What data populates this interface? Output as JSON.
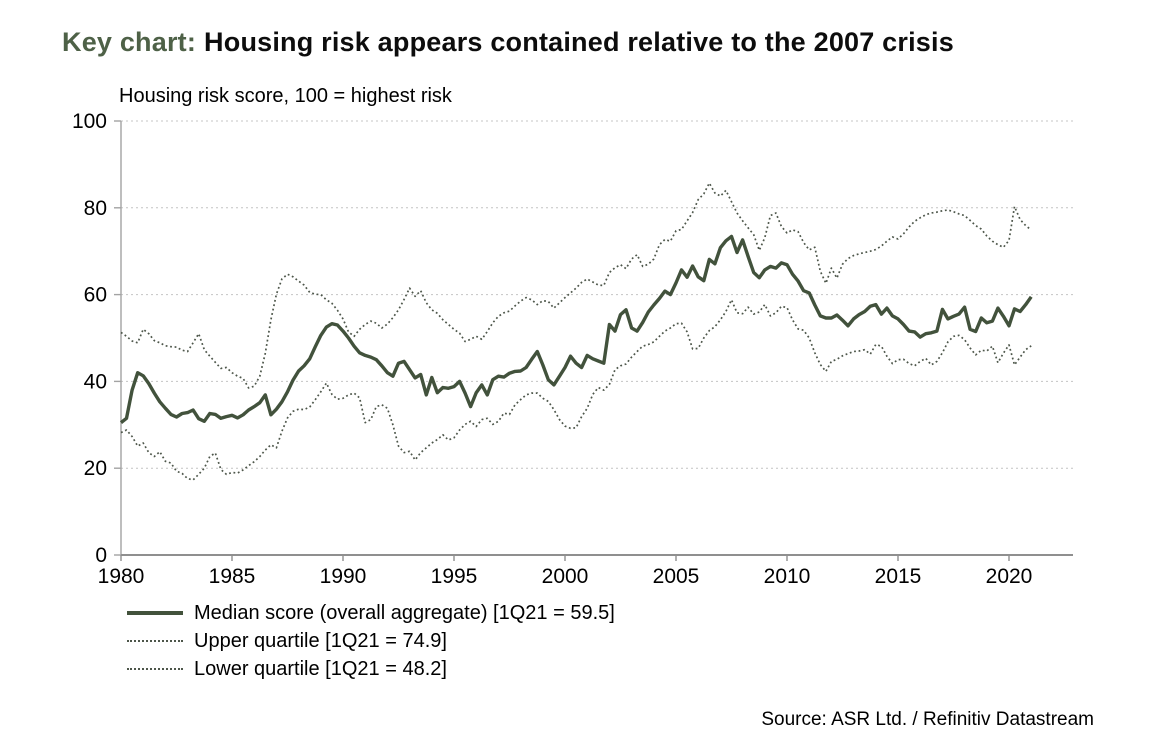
{
  "title": {
    "prefix": "Key chart:",
    "rest": "Housing risk appears contained relative to the 2007 crisis"
  },
  "source": "Source: ASR Ltd. / Refinitiv Datastream",
  "colors": {
    "title_accent": "#4e6147",
    "text": "#000000",
    "median_line": "#42523c",
    "quartile_line": "#4d564a",
    "gridline": "#c4c4c4",
    "axis": "#8f8f8f"
  },
  "chart_data": {
    "type": "line",
    "title": "Housing risk score, 100 = highest risk",
    "xlabel": "",
    "ylabel": "Housing risk score",
    "ylim": [
      0,
      100
    ],
    "y_ticks": [
      0,
      20,
      40,
      60,
      80,
      100
    ],
    "x_ticks": [
      1980,
      1985,
      1990,
      1995,
      2000,
      2005,
      2010,
      2015,
      2020
    ],
    "x_start": 1980,
    "x_step_years": 0.25,
    "last_point_label": "1Q21",
    "grid": true,
    "legend_position": "bottom-left",
    "series": [
      {
        "name": "Median score (overall aggregate)",
        "legend_label": "Median score (overall aggregate) [1Q21 = 59.5]",
        "style": "solid",
        "color": "#42523c",
        "final_value": 59.5,
        "values": [
          30.5,
          31.5,
          38.0,
          42.0,
          41.3,
          39.5,
          37.3,
          35.3,
          33.8,
          32.4,
          31.8,
          32.6,
          32.8,
          33.4,
          31.4,
          30.8,
          32.6,
          32.4,
          31.5,
          31.9,
          32.2,
          31.6,
          32.3,
          33.4,
          34.2,
          35.1,
          36.9,
          32.3,
          33.6,
          35.3,
          37.6,
          40.3,
          42.4,
          43.6,
          45.2,
          48.0,
          50.6,
          52.5,
          53.3,
          53.0,
          51.6,
          50.0,
          48.1,
          46.6,
          46.0,
          45.6,
          45.0,
          43.6,
          42.0,
          41.2,
          44.2,
          44.6,
          42.7,
          40.8,
          41.6,
          36.9,
          40.9,
          37.4,
          38.6,
          38.4,
          38.8,
          40.0,
          37.3,
          34.2,
          37.4,
          39.2,
          36.9,
          40.4,
          41.2,
          41.0,
          41.9,
          42.3,
          42.4,
          43.2,
          45.1,
          46.9,
          43.8,
          40.4,
          39.2,
          41.2,
          43.2,
          45.8,
          44.2,
          43.2,
          46.0,
          45.2,
          44.7,
          44.2,
          53.1,
          51.6,
          55.4,
          56.5,
          52.3,
          51.6,
          53.6,
          56.0,
          57.6,
          59.1,
          60.8,
          60.0,
          62.7,
          65.7,
          64.0,
          66.6,
          64.1,
          63.2,
          68.1,
          67.1,
          70.8,
          72.4,
          73.4,
          69.7,
          72.6,
          68.8,
          65.1,
          63.9,
          65.7,
          66.5,
          66.1,
          67.3,
          66.9,
          64.7,
          63.1,
          60.9,
          60.4,
          57.6,
          55.1,
          54.6,
          54.6,
          55.3,
          54.1,
          52.8,
          54.4,
          55.4,
          56.1,
          57.3,
          57.7,
          55.5,
          56.9,
          55.1,
          54.4,
          53.1,
          51.6,
          51.4,
          50.2,
          51.0,
          51.2,
          51.6,
          56.6,
          54.4,
          55.0,
          55.5,
          57.1,
          52.0,
          51.5,
          54.6,
          53.5,
          53.9,
          56.9,
          55.0,
          52.8,
          56.7,
          56.1,
          57.7,
          59.5
        ]
      },
      {
        "name": "Upper quartile",
        "legend_label": "Upper quartile [1Q21 = 74.9]",
        "style": "dotted",
        "color": "#4d564a",
        "final_value": 74.9,
        "values": [
          51.3,
          50.4,
          49.3,
          48.9,
          52.0,
          51.0,
          49.4,
          48.9,
          48.2,
          48.0,
          47.9,
          47.2,
          46.9,
          48.9,
          51.0,
          47.3,
          45.8,
          44.4,
          43.0,
          43.2,
          42.0,
          41.2,
          40.7,
          38.5,
          38.9,
          41.2,
          46.5,
          54.2,
          60.1,
          63.6,
          64.7,
          64.1,
          63.1,
          62.2,
          60.5,
          60.1,
          60.0,
          58.8,
          58.0,
          56.4,
          54.4,
          51.4,
          50.4,
          52.0,
          53.1,
          53.9,
          53.4,
          52.3,
          53.2,
          54.7,
          56.5,
          58.9,
          61.5,
          59.6,
          60.9,
          58.1,
          56.5,
          55.7,
          54.2,
          53.1,
          52.0,
          51.1,
          49.2,
          49.7,
          50.4,
          49.7,
          51.5,
          53.5,
          55.0,
          55.8,
          56.2,
          57.4,
          58.5,
          59.3,
          58.8,
          57.7,
          58.6,
          58.4,
          56.9,
          58.1,
          59.3,
          60.4,
          61.5,
          62.8,
          63.6,
          62.9,
          62.2,
          62.1,
          65.1,
          66.2,
          66.9,
          66.0,
          68.2,
          69.2,
          66.5,
          67.0,
          68.2,
          71.5,
          72.7,
          72.3,
          74.7,
          75.0,
          77.0,
          78.9,
          81.9,
          83.2,
          85.7,
          83.4,
          82.7,
          84.0,
          81.4,
          78.8,
          77.0,
          75.4,
          73.8,
          70.2,
          73.1,
          78.2,
          78.8,
          75.7,
          74.2,
          74.9,
          74.5,
          72.0,
          70.3,
          70.9,
          65.4,
          62.6,
          66.1,
          63.8,
          67.0,
          68.3,
          69.0,
          69.4,
          69.7,
          70.0,
          70.4,
          71.2,
          72.3,
          73.3,
          72.8,
          74.0,
          75.6,
          76.9,
          77.7,
          78.4,
          78.8,
          79.0,
          79.3,
          79.5,
          79.1,
          78.6,
          78.2,
          77.1,
          75.9,
          75.1,
          73.5,
          72.3,
          71.5,
          70.9,
          72.5,
          80.3,
          77.3,
          75.9,
          74.9
        ]
      },
      {
        "name": "Lower quartile",
        "legend_label": "Lower quartile [1Q21 = 48.2]",
        "style": "dotted",
        "color": "#4d564a",
        "final_value": 48.2,
        "values": [
          28.2,
          28.8,
          27.3,
          25.1,
          25.8,
          23.6,
          22.7,
          23.8,
          21.6,
          21.2,
          19.3,
          18.8,
          17.6,
          17.3,
          18.6,
          20.0,
          22.7,
          23.5,
          19.7,
          18.6,
          19.0,
          18.9,
          19.6,
          20.6,
          21.5,
          22.7,
          24.2,
          25.4,
          24.7,
          28.5,
          31.6,
          33.1,
          33.6,
          33.5,
          34.1,
          35.8,
          37.6,
          39.6,
          37.0,
          35.9,
          36.1,
          36.9,
          37.3,
          36.2,
          30.5,
          31.2,
          34.2,
          34.6,
          33.8,
          30.0,
          25.1,
          23.6,
          23.9,
          21.9,
          23.6,
          24.7,
          25.8,
          26.6,
          27.7,
          26.5,
          27.0,
          28.8,
          30.1,
          30.8,
          29.6,
          31.2,
          31.5,
          30.1,
          30.8,
          32.7,
          32.4,
          34.6,
          35.8,
          36.9,
          37.3,
          37.3,
          36.1,
          35.4,
          33.5,
          31.2,
          29.7,
          29.2,
          29.3,
          31.9,
          33.8,
          37.0,
          38.6,
          38.0,
          39.3,
          42.7,
          43.6,
          44.0,
          45.6,
          46.9,
          48.1,
          48.5,
          49.1,
          50.4,
          51.6,
          52.3,
          53.3,
          53.4,
          51.4,
          47.5,
          47.6,
          50.0,
          51.7,
          52.6,
          54.2,
          56.1,
          58.8,
          55.8,
          55.6,
          57.1,
          55.5,
          56.0,
          57.7,
          55.1,
          55.8,
          57.3,
          57.0,
          54.2,
          52.1,
          51.8,
          50.0,
          46.6,
          43.9,
          42.3,
          44.6,
          45.1,
          45.9,
          46.4,
          46.9,
          47.0,
          47.3,
          46.3,
          48.5,
          48.1,
          45.8,
          44.1,
          45.0,
          45.1,
          44.1,
          43.6,
          44.6,
          45.3,
          43.8,
          44.6,
          46.6,
          49.1,
          50.4,
          50.6,
          49.6,
          47.7,
          46.1,
          47.2,
          47.0,
          48.1,
          44.3,
          46.5,
          48.4,
          43.8,
          45.6,
          47.3,
          48.2
        ]
      }
    ]
  }
}
